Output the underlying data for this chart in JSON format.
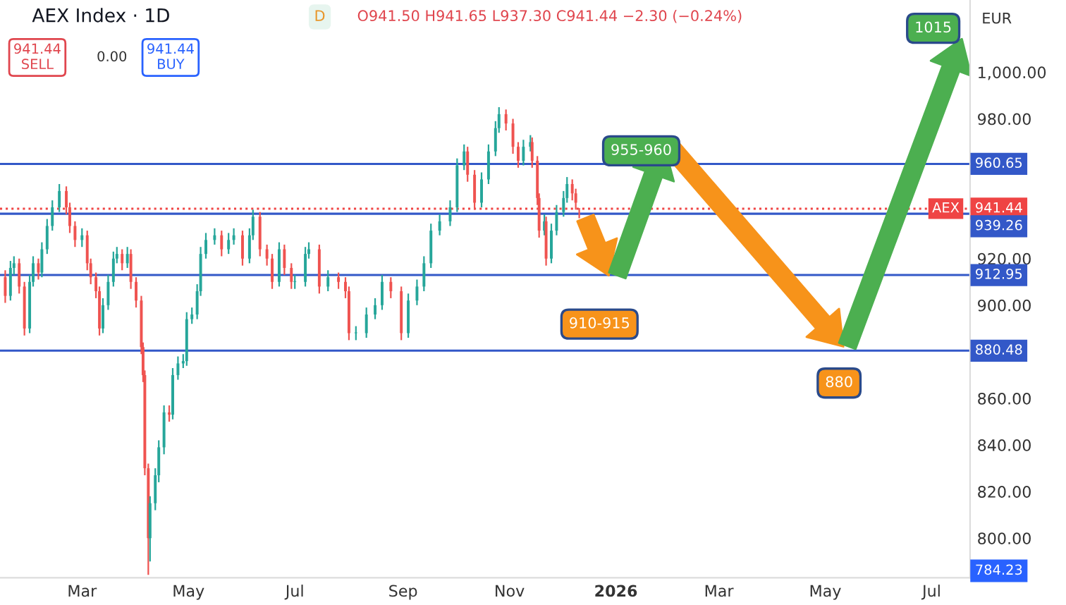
{
  "chart_data": {
    "type": "candlestick",
    "title": "AEX Index · 1D",
    "subtitle": "O941.50 H941.65 L937.30 C941.44 −2.30 (−0.24%)",
    "x": [
      "2025-01-16",
      "2025-01-19",
      "2025-01-21",
      "2025-01-24",
      "2025-01-27",
      "2025-01-30",
      "2025-02-01",
      "2025-02-04",
      "2025-02-06",
      "2025-02-09",
      "2025-02-12",
      "2025-02-16",
      "2025-02-20",
      "2025-02-22",
      "2025-02-25",
      "2025-03-01",
      "2025-03-04",
      "2025-03-06",
      "2025-03-09",
      "2025-03-11",
      "2025-03-13",
      "2025-03-16",
      "2025-03-19",
      "2025-03-21",
      "2025-03-24",
      "2025-03-27",
      "2025-03-29",
      "2025-04-01",
      "2025-04-04",
      "2025-04-05",
      "2025-04-06",
      "2025-04-08",
      "2025-04-09",
      "2025-04-12",
      "2025-04-14",
      "2025-04-17",
      "2025-04-20",
      "2025-04-22",
      "2025-04-25",
      "2025-04-28",
      "2025-04-30",
      "2025-05-03",
      "2025-05-06",
      "2025-05-08",
      "2025-05-11",
      "2025-05-16",
      "2025-05-20",
      "2025-05-24",
      "2025-05-27",
      "2025-06-01",
      "2025-06-05",
      "2025-06-07",
      "2025-06-11",
      "2025-06-15",
      "2025-06-18",
      "2025-06-22",
      "2025-06-25",
      "2025-06-29",
      "2025-07-01",
      "2025-07-07",
      "2025-07-09",
      "2025-07-15",
      "2025-07-20",
      "2025-07-26",
      "2025-07-30",
      "2025-08-01",
      "2025-08-05",
      "2025-08-11",
      "2025-08-16",
      "2025-08-20",
      "2025-08-25",
      "2025-08-31",
      "2025-09-04",
      "2025-09-09",
      "2025-09-13",
      "2025-09-17",
      "2025-09-22",
      "2025-09-28",
      "2025-10-02",
      "2025-10-06",
      "2025-10-08",
      "2025-10-12",
      "2025-10-16",
      "2025-10-20",
      "2025-10-24",
      "2025-10-26",
      "2025-10-30",
      "2025-11-03",
      "2025-11-06",
      "2025-11-09",
      "2025-11-13",
      "2025-11-14",
      "2025-11-17",
      "2025-11-18",
      "2025-11-21",
      "2025-11-22",
      "2025-11-25",
      "2025-11-28",
      "2025-12-02",
      "2025-12-04",
      "2025-12-07",
      "2025-12-09",
      "2025-12-11"
    ],
    "ohlc": [
      [
        912,
        915,
        901,
        904
      ],
      [
        904,
        919,
        902,
        916
      ],
      [
        916,
        921,
        913,
        918
      ],
      [
        918,
        920,
        905,
        908
      ],
      [
        908,
        910,
        887,
        890
      ],
      [
        890,
        913,
        888,
        910
      ],
      [
        910,
        921,
        908,
        918
      ],
      [
        918,
        920,
        911,
        914
      ],
      [
        914,
        927,
        912,
        924
      ],
      [
        924,
        937,
        922,
        934
      ],
      [
        934,
        945,
        932,
        942
      ],
      [
        942,
        952,
        940,
        949
      ],
      [
        949,
        951,
        939,
        942
      ],
      [
        942,
        944,
        931,
        934
      ],
      [
        934,
        936,
        925,
        928
      ],
      [
        928,
        933,
        925,
        930
      ],
      [
        930,
        932,
        915,
        918
      ],
      [
        918,
        920,
        909,
        912
      ],
      [
        912,
        914,
        903,
        906
      ],
      [
        906,
        908,
        887,
        890
      ],
      [
        890,
        903,
        888,
        900
      ],
      [
        900,
        913,
        898,
        910
      ],
      [
        910,
        923,
        908,
        920
      ],
      [
        920,
        925,
        918,
        922
      ],
      [
        922,
        924,
        915,
        918
      ],
      [
        918,
        925,
        916,
        922
      ],
      [
        922,
        924,
        907,
        910
      ],
      [
        910,
        912,
        899,
        902
      ],
      [
        902,
        904,
        879,
        882
      ],
      [
        882,
        884,
        867,
        870
      ],
      [
        870,
        872,
        827,
        830
      ],
      [
        830,
        832,
        784.23,
        800
      ],
      [
        800,
        818,
        790,
        815
      ],
      [
        815,
        830,
        812,
        827
      ],
      [
        827,
        842,
        824,
        839
      ],
      [
        839,
        857,
        836,
        854
      ],
      [
        854,
        857,
        850,
        853
      ],
      [
        853,
        873,
        851,
        870
      ],
      [
        870,
        878,
        868,
        875
      ],
      [
        875,
        879,
        873,
        876
      ],
      [
        876,
        897,
        874,
        894
      ],
      [
        894,
        899,
        892,
        896
      ],
      [
        896,
        909,
        894,
        906
      ],
      [
        906,
        925,
        904,
        922
      ],
      [
        922,
        931,
        920,
        928
      ],
      [
        928,
        933,
        926,
        930
      ],
      [
        930,
        932,
        921,
        924
      ],
      [
        924,
        931,
        922,
        928
      ],
      [
        928,
        933,
        926,
        930
      ],
      [
        930,
        932,
        917,
        920
      ],
      [
        920,
        933,
        918,
        930
      ],
      [
        930,
        941,
        928,
        938
      ],
      [
        938,
        940,
        921,
        924
      ],
      [
        924,
        926,
        917,
        920
      ],
      [
        920,
        922,
        907,
        910
      ],
      [
        910,
        927,
        908,
        924
      ],
      [
        924,
        926,
        913,
        916
      ],
      [
        916,
        918,
        907,
        910
      ],
      [
        910,
        913,
        907,
        910
      ],
      [
        910,
        925,
        908,
        922
      ],
      [
        922,
        927,
        920,
        924
      ],
      [
        924,
        926,
        905,
        908
      ],
      [
        908,
        915,
        906,
        912
      ],
      [
        912,
        914,
        907,
        910
      ],
      [
        910,
        912,
        903,
        906
      ],
      [
        906,
        908,
        885,
        888
      ],
      [
        888,
        891,
        885,
        888
      ],
      [
        888,
        899,
        886,
        896
      ],
      [
        896,
        903,
        894,
        900
      ],
      [
        900,
        913,
        898,
        910
      ],
      [
        910,
        912,
        903,
        906
      ],
      [
        906,
        908,
        885,
        888
      ],
      [
        888,
        905,
        886,
        902
      ],
      [
        902,
        911,
        900,
        908
      ],
      [
        908,
        921,
        906,
        918
      ],
      [
        918,
        935,
        916,
        932
      ],
      [
        932,
        939,
        930,
        936
      ],
      [
        936,
        945,
        934,
        942
      ],
      [
        942,
        963,
        940,
        960
      ],
      [
        960,
        969,
        958,
        966
      ],
      [
        966,
        968,
        953,
        956
      ],
      [
        956,
        958,
        941,
        944
      ],
      [
        944,
        957,
        942,
        954
      ],
      [
        954,
        969,
        952,
        966
      ],
      [
        966,
        979,
        964,
        976
      ],
      [
        976,
        985,
        974,
        982
      ],
      [
        982,
        984,
        975,
        978
      ],
      [
        978,
        980,
        965,
        968
      ],
      [
        968,
        970,
        959,
        962
      ],
      [
        962,
        971,
        960,
        968
      ],
      [
        968,
        973,
        966,
        970
      ],
      [
        970,
        972,
        959,
        962
      ],
      [
        962,
        964,
        943,
        946
      ],
      [
        946,
        948,
        929,
        932
      ],
      [
        932,
        939,
        930,
        936
      ],
      [
        936,
        938,
        917,
        920
      ],
      [
        920,
        935,
        918,
        932
      ],
      [
        932,
        943,
        930,
        940
      ],
      [
        940,
        949,
        938,
        946
      ],
      [
        946,
        955,
        944,
        952
      ],
      [
        952,
        954,
        945,
        948
      ],
      [
        948,
        950,
        941,
        944
      ],
      [
        941.5,
        941.65,
        937.3,
        941.44
      ]
    ],
    "xlim": [
      "2025-01-13",
      "2026-07-23"
    ],
    "xticks": [
      {
        "value": "2025-03-01",
        "label": "Mar"
      },
      {
        "value": "2025-05-01",
        "label": "May"
      },
      {
        "value": "2025-07-01",
        "label": "Jul"
      },
      {
        "value": "2025-09-01",
        "label": "Sep"
      },
      {
        "value": "2025-11-01",
        "label": "Nov"
      },
      {
        "value": "2026-01-01",
        "label": "2026"
      },
      {
        "value": "2026-03-01",
        "label": "Mar"
      },
      {
        "value": "2026-05-01",
        "label": "May"
      },
      {
        "value": "2026-07-01",
        "label": "Jul"
      }
    ],
    "ylim": [
      783,
      1031
    ],
    "yticks": [
      {
        "value": 800,
        "label": "800.00"
      },
      {
        "value": 820,
        "label": "820.00"
      },
      {
        "value": 840,
        "label": "840.00"
      },
      {
        "value": 860,
        "label": "860.00"
      },
      {
        "value": 900,
        "label": "900.00"
      },
      {
        "value": 920,
        "label": "920.00"
      },
      {
        "value": 980,
        "label": "980.00"
      },
      {
        "value": 1000,
        "label": "1,000.00"
      }
    ],
    "ref_lines": [
      {
        "axis": "y",
        "value": 960.65,
        "label": "960.65",
        "color": "#3358c8"
      },
      {
        "axis": "y",
        "value": 939.26,
        "label": "939.26",
        "color": "#3358c8"
      },
      {
        "axis": "y",
        "value": 912.95,
        "label": "912.95",
        "color": "#3358c8"
      },
      {
        "axis": "y",
        "value": 880.48,
        "label": "880.48",
        "color": "#3358c8"
      },
      {
        "axis": "y",
        "value": 941.44,
        "label": "941.44",
        "color": "#ef4444",
        "line_style": "dotted"
      }
    ],
    "annotations": [
      "D",
      "941.44\nSELL",
      "0.00",
      "941.44\nBUY",
      "AEX",
      "EUR",
      "784.23",
      "910-915",
      "955-960",
      "880",
      "1015"
    ],
    "grid": false
  }
}
